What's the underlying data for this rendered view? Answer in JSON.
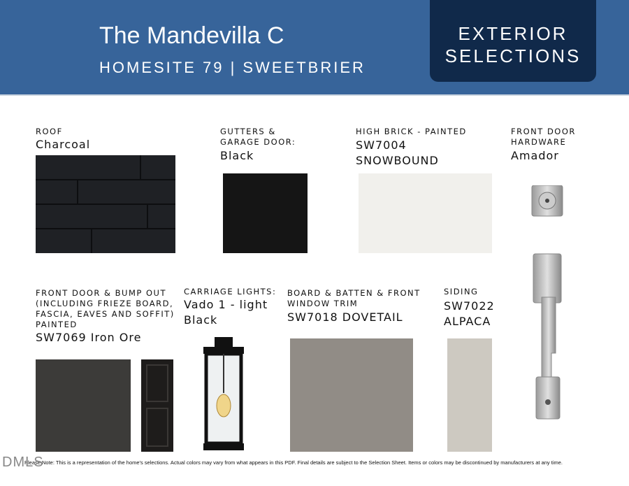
{
  "header": {
    "title": "The Mandevilla C",
    "subtitle": "HOMESITE 79 | SWEETBRIER",
    "badge_line1": "EXTERIOR",
    "badge_line2": "SELECTIONS"
  },
  "selections": {
    "roof": {
      "label": "ROOF",
      "value": "Charcoal",
      "color": "#1d1f23"
    },
    "gutters": {
      "label1": "GUTTERS &",
      "label2": "GARAGE DOOR:",
      "value": "Black",
      "color": "#151515"
    },
    "high_brick": {
      "label": "HIGH BRICK - PAINTED",
      "value1": "SW7004",
      "value2": "SNOWBOUND",
      "color": "#f1f0ec"
    },
    "hardware": {
      "label1": "FRONT DOOR",
      "label2": "HARDWARE",
      "value": "Amador"
    },
    "front_door": {
      "label1": "FRONT DOOR & BUMP OUT",
      "label2": "(INCLUDING FRIEZE BOARD,",
      "label3": "FASCIA, EAVES AND SOFFIT)",
      "label4": "PAINTED",
      "value": "SW7069 Iron Ore",
      "color": "#3c3b39"
    },
    "lights": {
      "label": "CARRIAGE LIGHTS:",
      "value1": "Vado 1 - light",
      "value2": "Black"
    },
    "board_batten": {
      "label1": "BOARD & BATTEN & FRONT",
      "label2": "WINDOW TRIM",
      "value": "SW7018 DOVETAIL",
      "color": "#918c86"
    },
    "siding": {
      "label": "SIDING",
      "value1": "SW7022",
      "value2": "ALPACA",
      "color": "#cdc9c1"
    }
  },
  "footer": {
    "note": "Please Note: This is a representation of the home's selections. Actual colors may vary from what appears in this PDF. Final details are subject to the Selection Sheet. Items or colors may be discontinued by manufacturers at any time.",
    "watermark": "DMLS"
  }
}
